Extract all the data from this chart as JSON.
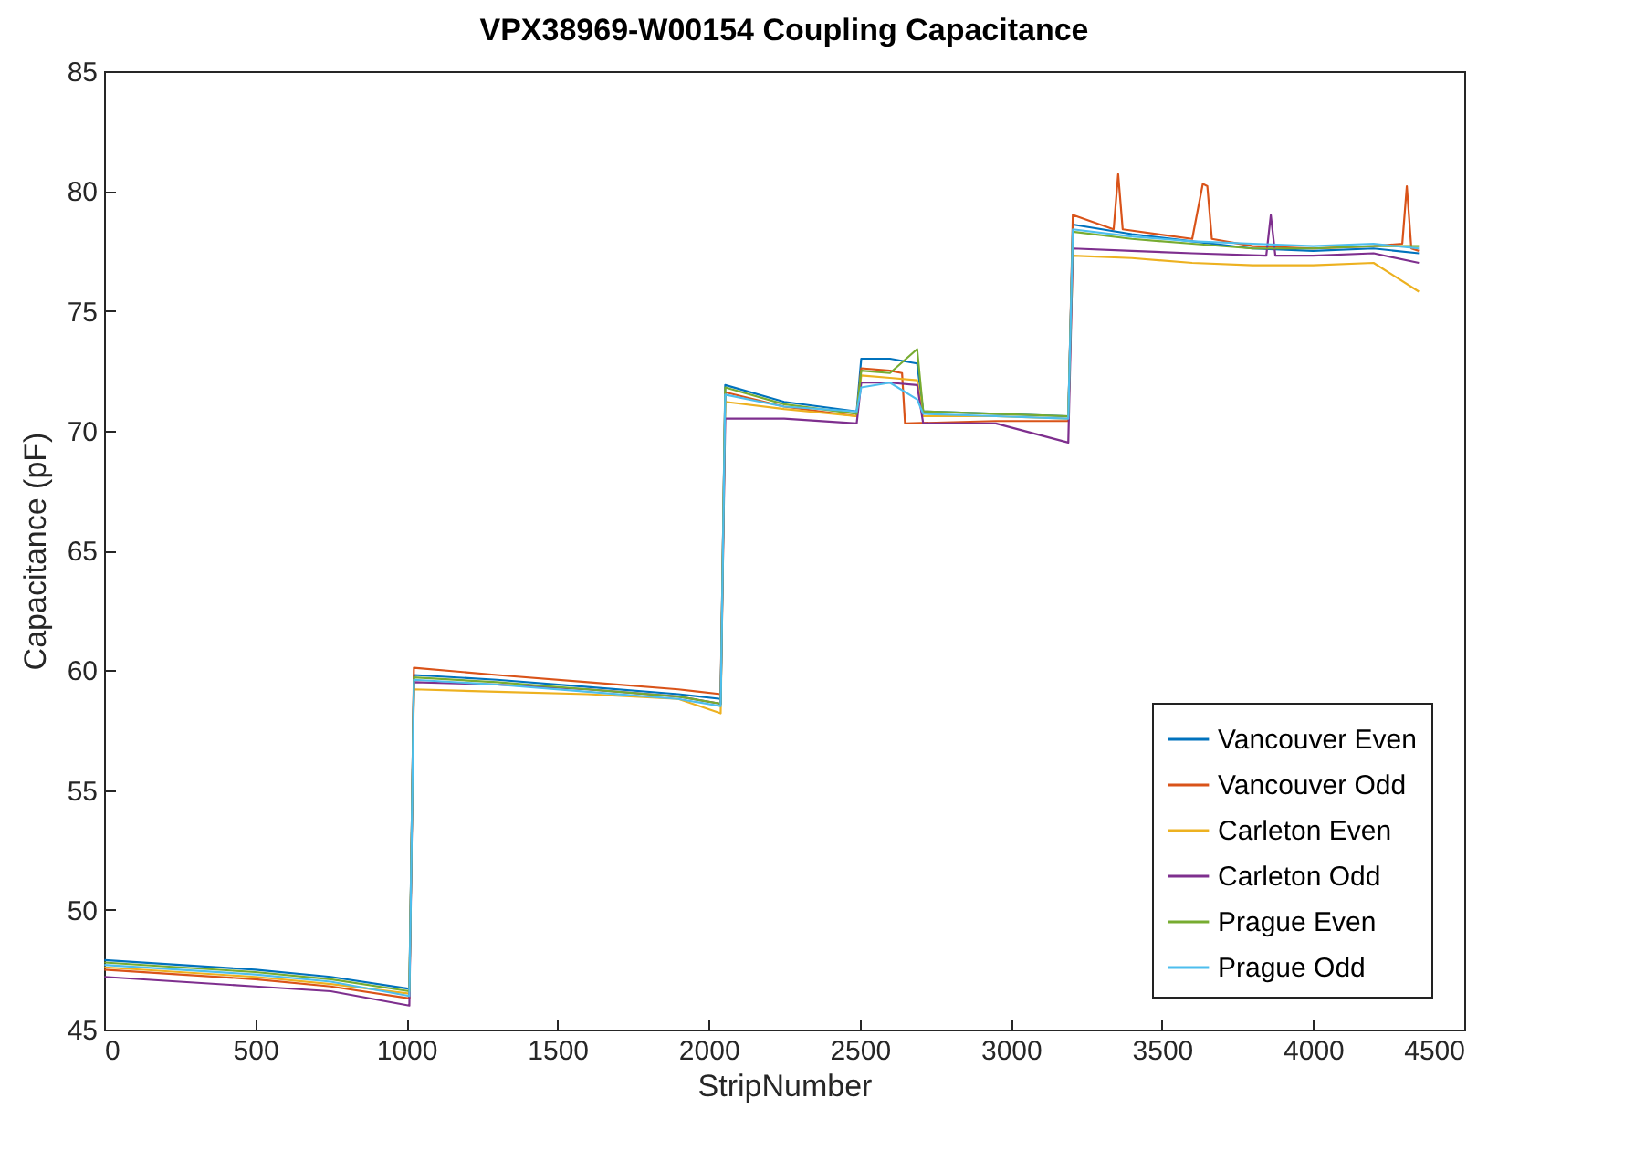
{
  "chart_data": {
    "type": "line",
    "title": "VPX38969-W00154 Coupling Capacitance",
    "xlabel": "StripNumber",
    "ylabel": "Capacitance (pF)",
    "x": [
      1,
      250,
      500,
      750,
      1010,
      1025,
      1300,
      1600,
      1900,
      2040,
      2055,
      2250,
      2490,
      2505,
      2600,
      2690,
      2710,
      2950,
      3190,
      3205,
      3400,
      3600,
      3800,
      4000,
      4200,
      4350
    ],
    "series": [
      {
        "name": "Vancouver Even",
        "color": "#0072bd",
        "values": [
          47.9,
          47.7,
          47.5,
          47.2,
          46.7,
          59.8,
          59.6,
          59.3,
          59.0,
          58.8,
          71.9,
          71.2,
          70.8,
          73.0,
          73.0,
          72.8,
          70.8,
          70.7,
          70.6,
          78.6,
          78.2,
          77.9,
          77.6,
          77.5,
          77.6,
          77.4
        ]
      },
      {
        "name": "Vancouver Odd",
        "color": "#d95319",
        "x": [
          1,
          250,
          500,
          750,
          1010,
          1025,
          1300,
          1600,
          1900,
          2040,
          2055,
          2250,
          2490,
          2505,
          2600,
          2640,
          2650,
          2950,
          3190,
          3205,
          3340,
          3355,
          3370,
          3600,
          3635,
          3650,
          3665,
          3800,
          4000,
          4200,
          4295,
          4310,
          4325,
          4350
        ],
        "values": [
          47.5,
          47.3,
          47.1,
          46.8,
          46.3,
          60.1,
          59.8,
          59.5,
          59.2,
          59.0,
          71.6,
          71.0,
          70.6,
          72.6,
          72.5,
          72.4,
          70.3,
          70.4,
          70.4,
          79.0,
          78.4,
          80.7,
          78.4,
          78.0,
          80.3,
          80.2,
          78.0,
          77.7,
          77.6,
          77.7,
          77.8,
          80.2,
          77.6,
          77.5
        ]
      },
      {
        "name": "Carleton Even",
        "color": "#edb120",
        "values": [
          47.6,
          47.4,
          47.2,
          46.9,
          46.5,
          59.2,
          59.1,
          59.0,
          58.8,
          58.2,
          71.2,
          70.9,
          70.6,
          72.3,
          72.2,
          72.1,
          70.6,
          70.6,
          70.5,
          77.3,
          77.2,
          77.0,
          76.9,
          76.9,
          77.0,
          75.8
        ]
      },
      {
        "name": "Carleton Odd",
        "color": "#7e2f8e",
        "x": [
          1,
          250,
          500,
          750,
          1010,
          1025,
          1300,
          1600,
          1900,
          2040,
          2055,
          2250,
          2490,
          2505,
          2600,
          2690,
          2710,
          2950,
          3190,
          3205,
          3400,
          3600,
          3845,
          3860,
          3875,
          4000,
          4200,
          4350
        ],
        "values": [
          47.2,
          47.0,
          46.8,
          46.6,
          46.0,
          59.5,
          59.4,
          59.2,
          58.9,
          58.6,
          70.5,
          70.5,
          70.3,
          72.0,
          72.0,
          71.9,
          70.3,
          70.3,
          69.5,
          77.6,
          77.5,
          77.4,
          77.3,
          79.0,
          77.3,
          77.3,
          77.4,
          77.0
        ]
      },
      {
        "name": "Prague Even",
        "color": "#77ac30",
        "values": [
          47.8,
          47.6,
          47.4,
          47.1,
          46.6,
          59.7,
          59.5,
          59.2,
          58.9,
          58.6,
          71.8,
          71.1,
          70.7,
          72.5,
          72.4,
          73.4,
          70.8,
          70.7,
          70.6,
          78.3,
          78.0,
          77.8,
          77.6,
          77.6,
          77.7,
          77.7
        ]
      },
      {
        "name": "Prague Odd",
        "color": "#4dbeee",
        "values": [
          47.7,
          47.5,
          47.3,
          47.0,
          46.4,
          59.6,
          59.4,
          59.1,
          58.8,
          58.5,
          71.5,
          71.0,
          70.8,
          71.8,
          72.0,
          71.3,
          70.7,
          70.6,
          70.5,
          78.4,
          78.1,
          77.9,
          77.8,
          77.7,
          77.8,
          77.6
        ]
      }
    ],
    "xlim": [
      0,
      4500
    ],
    "xticks": [
      0,
      500,
      1000,
      1500,
      2000,
      2500,
      3000,
      3500,
      4000,
      4500
    ],
    "ylim": [
      45,
      85
    ],
    "yticks": [
      45,
      50,
      55,
      60,
      65,
      70,
      75,
      80,
      85
    ],
    "legend": "bottom right"
  }
}
